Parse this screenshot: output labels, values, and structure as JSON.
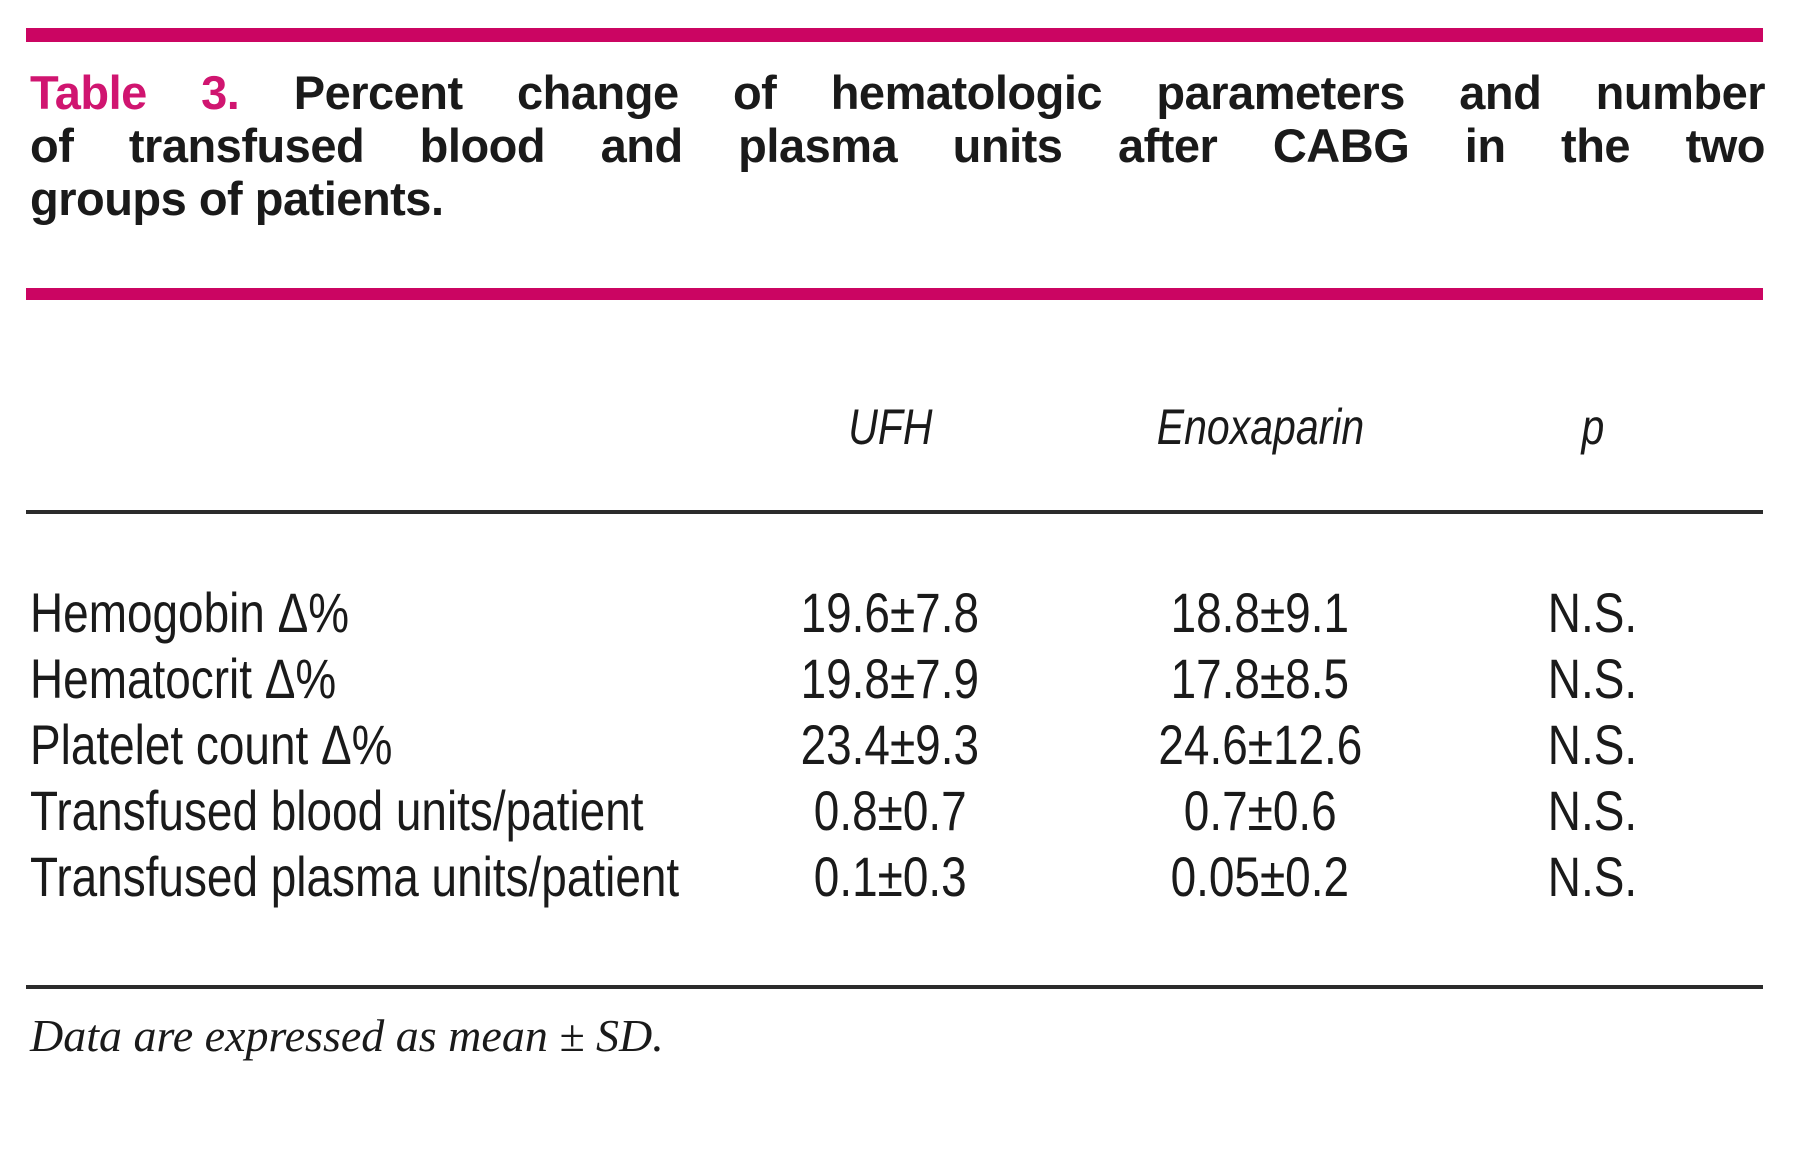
{
  "caption": {
    "label": "Table 3.",
    "line1": "Percent change of hematologic parameters and number",
    "line2": "of transfused blood and plasma units after CABG in the two",
    "line3": "groups of patients."
  },
  "header": {
    "ufh": "UFH",
    "enoxaparin": "Enoxaparin",
    "p": "p"
  },
  "rows": [
    {
      "label": "Hemogobin Δ%",
      "ufh": "19.6±7.8",
      "enoxaparin": "18.8±9.1",
      "p": "N.S."
    },
    {
      "label": "Hematocrit Δ%",
      "ufh": "19.8±7.9",
      "enoxaparin": "17.8±8.5",
      "p": "N.S."
    },
    {
      "label": "Platelet count Δ%",
      "ufh": "23.4±9.3",
      "enoxaparin": "24.6±12.6",
      "p": "N.S."
    },
    {
      "label": "Transfused blood units/patient",
      "ufh": "0.8±0.7",
      "enoxaparin": "0.7±0.6",
      "p": "N.S."
    },
    {
      "label": "Transfused plasma units/patient",
      "ufh": "0.1±0.3",
      "enoxaparin": "0.05±0.2",
      "p": "N.S."
    }
  ],
  "footnote": "Data are expressed as mean ± SD.",
  "colors": {
    "accent_bar": "#cb0562",
    "accent_text": "#d01570",
    "body_text": "#1a1a1a",
    "rule": "#2b2b2b"
  },
  "chart_data": {
    "type": "table",
    "title": "Table 3. Percent change of hematologic parameters and number of transfused blood and plasma units after CABG in the two groups of patients.",
    "columns": [
      "",
      "UFH",
      "Enoxaparin",
      "p"
    ],
    "rows": [
      [
        "Hemogobin Δ%",
        "19.6±7.8",
        "18.8±9.1",
        "N.S."
      ],
      [
        "Hematocrit Δ%",
        "19.8±7.9",
        "17.8±8.5",
        "N.S."
      ],
      [
        "Platelet count Δ%",
        "23.4±9.3",
        "24.6±12.6",
        "N.S."
      ],
      [
        "Transfused blood units/patient",
        "0.8±0.7",
        "0.7±0.6",
        "N.S."
      ],
      [
        "Transfused plasma units/patient",
        "0.1±0.3",
        "0.05±0.2",
        "N.S."
      ]
    ],
    "footnote": "Data are expressed as mean ± SD."
  }
}
